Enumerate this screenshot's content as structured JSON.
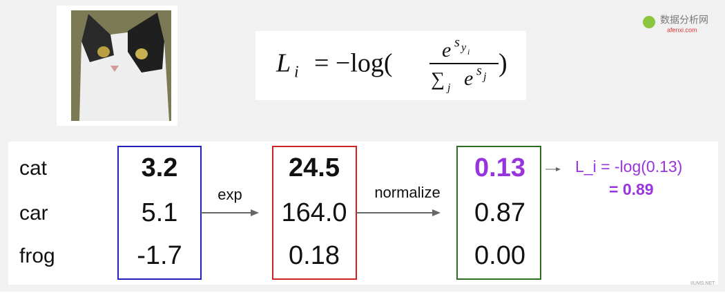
{
  "watermark": {
    "brand": "数据分析网",
    "site": "afenxi.com",
    "corner": "IIUMS.NET"
  },
  "formula": {
    "lhs": "L",
    "lhs_sub": "i",
    "op": "= −log(",
    "num_base": "e",
    "num_exp": "s",
    "num_exp_sub": "y",
    "num_exp_subsub": "i",
    "sum": "∑",
    "sum_sub": "j",
    "den_base": "e",
    "den_exp": "s",
    "den_exp_sub": "j",
    "close": ")"
  },
  "classes": [
    "cat",
    "car",
    "frog"
  ],
  "scores": [
    "3.2",
    "5.1",
    "-1.7"
  ],
  "exp_scores": [
    "24.5",
    "164.0",
    "0.18"
  ],
  "probabilities": [
    "0.13",
    "0.87",
    "0.00"
  ],
  "steps": [
    "exp",
    "normalize"
  ],
  "loss": {
    "line1": "L_i = -log(0.13)",
    "line2": "= 0.89"
  }
}
